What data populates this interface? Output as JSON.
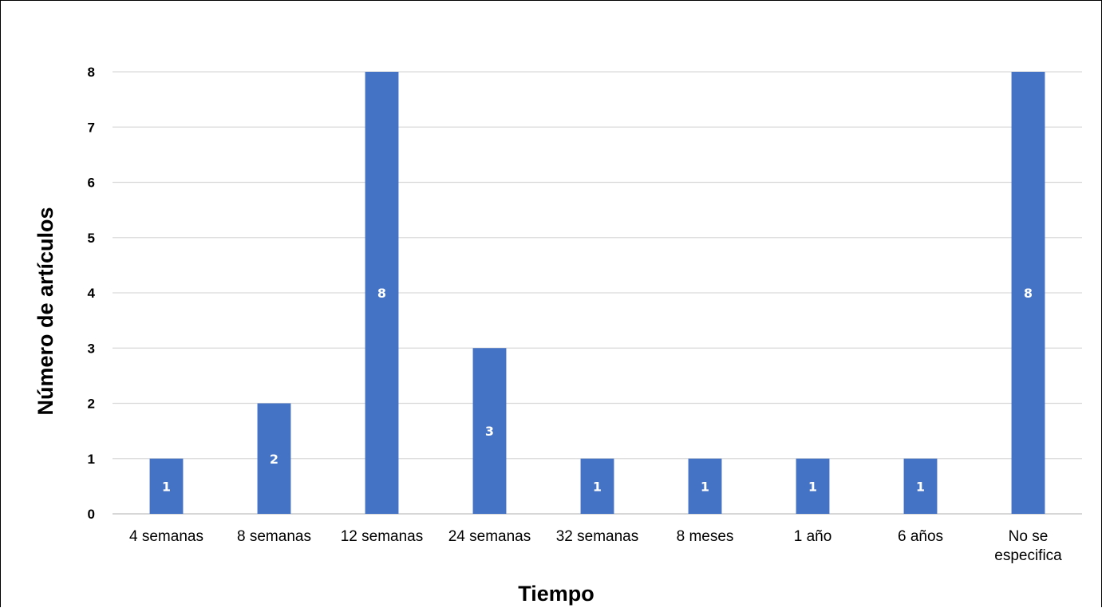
{
  "chart_data": {
    "type": "bar",
    "categories": [
      "4 semanas",
      "8 semanas",
      "12 semanas",
      "24 semanas",
      "32 semanas",
      "8 meses",
      "1 año",
      "6 años",
      "No se especifica"
    ],
    "values": [
      1,
      2,
      8,
      3,
      1,
      1,
      1,
      1,
      8
    ],
    "data_labels": [
      "1",
      "2",
      "8",
      "3",
      "1",
      "1",
      "1",
      "1",
      "8"
    ],
    "title": "",
    "xlabel": "Tiempo",
    "ylabel": "Número de artículos",
    "ylim": [
      0,
      8
    ],
    "yticks": [
      0,
      1,
      2,
      3,
      4,
      5,
      6,
      7,
      8
    ],
    "grid": true,
    "legend": "none",
    "colors": {
      "bar": "#4472C4",
      "grid": "#d9d9d9",
      "axis": "#bfbfbf",
      "data_label": "#ffffff"
    }
  }
}
